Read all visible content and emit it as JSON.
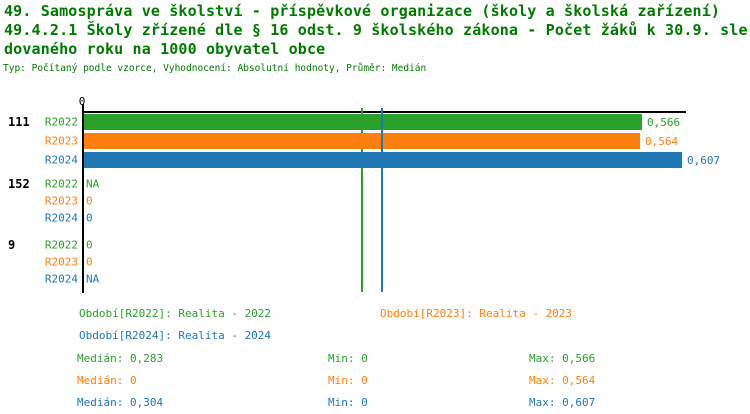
{
  "title": {
    "line1": "49. Samospráva ve školství - příspěvkové organizace (školy a školská zařízení)",
    "line2": "49.4.2.1 Školy zřízené dle § 16 odst. 9 školského zákona - Počet žáků k 30.9. sle",
    "line3": "dovaného roku na 1000 obyvatel obce",
    "meta": "Typ: Počítaný podle vzorce, Vyhodnocení: Absolutní hodnoty, Průměr: Medián"
  },
  "colors": {
    "green": "#2ca02c",
    "orange": "#ff7f0e",
    "blue": "#1f77b4",
    "title": "#007a00",
    "axis": "#000000"
  },
  "chart_data": {
    "type": "bar",
    "orientation": "horizontal",
    "axis_zero_label": "0",
    "xlim": [
      0,
      0.615
    ],
    "grid": false,
    "groups": [
      {
        "label": "111",
        "rows": [
          {
            "series": "R2022",
            "value": 0.566,
            "display": "0,566",
            "color": "green"
          },
          {
            "series": "R2023",
            "value": 0.564,
            "display": "0,564",
            "color": "orange"
          },
          {
            "series": "R2024",
            "value": 0.607,
            "display": "0,607",
            "color": "blue"
          }
        ]
      },
      {
        "label": "152",
        "rows": [
          {
            "series": "R2022",
            "value": null,
            "display": "NA",
            "color": "green"
          },
          {
            "series": "R2023",
            "value": 0,
            "display": "0",
            "color": "orange"
          },
          {
            "series": "R2024",
            "value": 0,
            "display": "0",
            "color": "blue"
          }
        ]
      },
      {
        "label": "9",
        "rows": [
          {
            "series": "R2022",
            "value": 0,
            "display": "0",
            "color": "green"
          },
          {
            "series": "R2023",
            "value": 0,
            "display": "0",
            "color": "orange"
          },
          {
            "series": "R2024",
            "value": null,
            "display": "NA",
            "color": "blue"
          }
        ]
      }
    ],
    "median_lines": [
      {
        "series": "R2022",
        "value": 0.283,
        "color": "green"
      },
      {
        "series": "R2024",
        "value": 0.304,
        "color": "blue"
      }
    ]
  },
  "legend": {
    "entries": [
      {
        "label": "Období[R2022]: Realita - 2022",
        "color": "green"
      },
      {
        "label": "Období[R2023]: Realita - 2023",
        "color": "orange"
      },
      {
        "label": "Období[R2024]: Realita - 2024",
        "color": "blue"
      }
    ],
    "stats": [
      {
        "color": "green",
        "median": "Medián: 0,283",
        "min": "Min: 0",
        "max": "Max: 0,566"
      },
      {
        "color": "orange",
        "median": "Medián: 0",
        "min": "Min: 0",
        "max": "Max: 0,564"
      },
      {
        "color": "blue",
        "median": "Medián: 0,304",
        "min": "Min: 0",
        "max": "Max: 0,607"
      }
    ]
  }
}
